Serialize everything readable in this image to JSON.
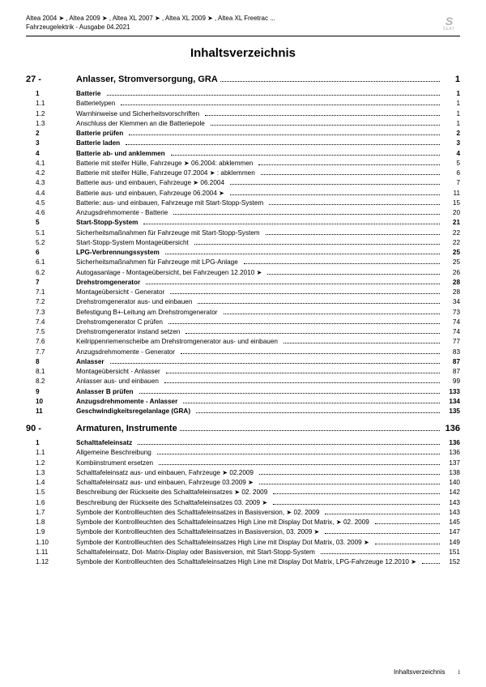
{
  "header": {
    "line1": "Altea 2004 ➤ , Altea 2009 ➤ , Altea XL 2007 ➤ , Altea XL 2009 ➤ , Altea XL Freetrac ...",
    "line2": "Fahrzeugelektrik - Ausgabe 04.2021",
    "brand": "SEAT"
  },
  "title": "Inhaltsverzeichnis",
  "chapters": [
    {
      "num": "27 -",
      "label": "Anlasser, Stromversorgung, GRA",
      "page": "1",
      "rows": [
        {
          "n": "1",
          "l": "Batterie",
          "p": "1",
          "b": true
        },
        {
          "n": "1.1",
          "l": "Batterietypen",
          "p": "1"
        },
        {
          "n": "1.2",
          "l": "Warnhinweise und Sicherheitsvorschriften",
          "p": "1"
        },
        {
          "n": "1.3",
          "l": "Anschluss der Klemmen an die Batteriepole",
          "p": "1"
        },
        {
          "n": "2",
          "l": "Batterie prüfen",
          "p": "2",
          "b": true
        },
        {
          "n": "3",
          "l": "Batterie laden",
          "p": "3",
          "b": true
        },
        {
          "n": "4",
          "l": "Batterie ab- und anklemmen",
          "p": "4",
          "b": true
        },
        {
          "n": "4.1",
          "l": "Batterie mit steifer Hülle, Fahrzeuge ➤ 06.2004: abklemmen",
          "p": "5"
        },
        {
          "n": "4.2",
          "l": "Batterie mit steifer Hülle, Fahrzeuge 07.2004 ➤ : abklemmen",
          "p": "6"
        },
        {
          "n": "4.3",
          "l": "Batterie aus- und einbauen, Fahrzeuge ➤ 06.2004",
          "p": "7"
        },
        {
          "n": "4.4",
          "l": "Batterie aus- und einbauen, Fahrzeuge 06.2004 ➤",
          "p": "11"
        },
        {
          "n": "4.5",
          "l": "Batterie: aus- und einbauen, Fahrzeuge mit Start-Stopp-System",
          "p": "15"
        },
        {
          "n": "4.6",
          "l": "Anzugsdrehmomente - Batterie",
          "p": "20"
        },
        {
          "n": "5",
          "l": "Start-Stopp-System",
          "p": "21",
          "b": true
        },
        {
          "n": "5.1",
          "l": "Sicherheitsmaßnahmen für Fahrzeuge mit Start-Stopp-System",
          "p": "22"
        },
        {
          "n": "5.2",
          "l": "Start-Stopp-System Montageübersicht",
          "p": "22"
        },
        {
          "n": "6",
          "l": "LPG-Verbrennungssystem",
          "p": "25",
          "b": true
        },
        {
          "n": "6.1",
          "l": "Sicherheitsmaßnahmen für Fahrzeuge mit LPG-Anlage",
          "p": "25"
        },
        {
          "n": "6.2",
          "l": "Autogasanlage - Montageübersicht, bei Fahrzeugen 12.2010 ➤",
          "p": "26"
        },
        {
          "n": "7",
          "l": "Drehstromgenerator",
          "p": "28",
          "b": true
        },
        {
          "n": "7.1",
          "l": "Montageübersicht - Generator",
          "p": "28"
        },
        {
          "n": "7.2",
          "l": "Drehstromgenerator aus- und einbauen",
          "p": "34"
        },
        {
          "n": "7.3",
          "l": "Befestigung B+-Leitung am Drehstromgenerator",
          "p": "73"
        },
        {
          "n": "7.4",
          "l": "Drehstromgenerator C prüfen",
          "p": "74"
        },
        {
          "n": "7.5",
          "l": "Drehstromgenerator instand setzen",
          "p": "74"
        },
        {
          "n": "7.6",
          "l": "Keilrippenriemenscheibe am Drehstromgenerator aus- und einbauen",
          "p": "77"
        },
        {
          "n": "7.7",
          "l": "Anzugsdrehmomente - Generator",
          "p": "83"
        },
        {
          "n": "8",
          "l": "Anlasser",
          "p": "87",
          "b": true
        },
        {
          "n": "8.1",
          "l": "Montageübersicht - Anlasser",
          "p": "87"
        },
        {
          "n": "8.2",
          "l": "Anlasser aus- und einbauen",
          "p": "99"
        },
        {
          "n": "9",
          "l": "Anlasser B prüfen",
          "p": "133",
          "b": true
        },
        {
          "n": "10",
          "l": "Anzugsdrehmomente - Anlasser",
          "p": "134",
          "b": true
        },
        {
          "n": "11",
          "l": "Geschwindigkeitsregelanlage (GRA)",
          "p": "135",
          "b": true
        }
      ]
    },
    {
      "num": "90 -",
      "label": "Armaturen, Instrumente",
      "page": "136",
      "rows": [
        {
          "n": "1",
          "l": "Schalttafeleinsatz",
          "p": "136",
          "b": true
        },
        {
          "n": "1.1",
          "l": "Allgemeine Beschreibung",
          "p": "136"
        },
        {
          "n": "1.2",
          "l": "Kombiinstrument ersetzen",
          "p": "137"
        },
        {
          "n": "1.3",
          "l": "Schalttafeleinsatz aus- und einbauen, Fahrzeuge ➤ 02.2009",
          "p": "138"
        },
        {
          "n": "1.4",
          "l": "Schalttafeleinsatz aus- und einbauen, Fahrzeuge 03.2009 ➤",
          "p": "140"
        },
        {
          "n": "1.5",
          "l": "Beschreibung der Rückseite des Schalttafeleinsatzes ➤ 02. 2009",
          "p": "142"
        },
        {
          "n": "1.6",
          "l": "Beschreibung der Rückseite des Schalttafeleinsatzes 03. 2009 ➤",
          "p": "143"
        },
        {
          "n": "1.7",
          "l": "Symbole der Kontrollleuchten des Schalttafeleinsatzes in Basisversion, ➤ 02. 2009",
          "p": "143"
        },
        {
          "n": "1.8",
          "l": "Symbole der Kontrollleuchten des Schalttafeleinsatzes High Line mit Display Dot Matrix, ➤ 02. 2009",
          "p": "145",
          "wrap": true
        },
        {
          "n": "1.9",
          "l": "Symbole der Kontrollleuchten des Schalttafeleinsatzes in Basisversion, 03. 2009 ➤",
          "p": "147"
        },
        {
          "n": "1.10",
          "l": "Symbole der Kontrollleuchten des Schalttafeleinsatzes High Line mit Display Dot Matrix, 03. 2009 ➤",
          "p": "149",
          "wrap": true
        },
        {
          "n": "1.11",
          "l": "Schalttafeleinsatz, Dot- Matrix-Display oder Basisversion, mit Start-Stopp-System",
          "p": "151"
        },
        {
          "n": "1.12",
          "l": "Symbole der Kontrollleuchten des Schalttafeleinsatzes High Line mit Display Dot Matrix, LPG-Fahrzeuge 12.2010 ➤",
          "p": "152",
          "wrap": true
        }
      ]
    }
  ],
  "footer": {
    "label": "Inhaltsverzeichnis",
    "page": "i"
  }
}
